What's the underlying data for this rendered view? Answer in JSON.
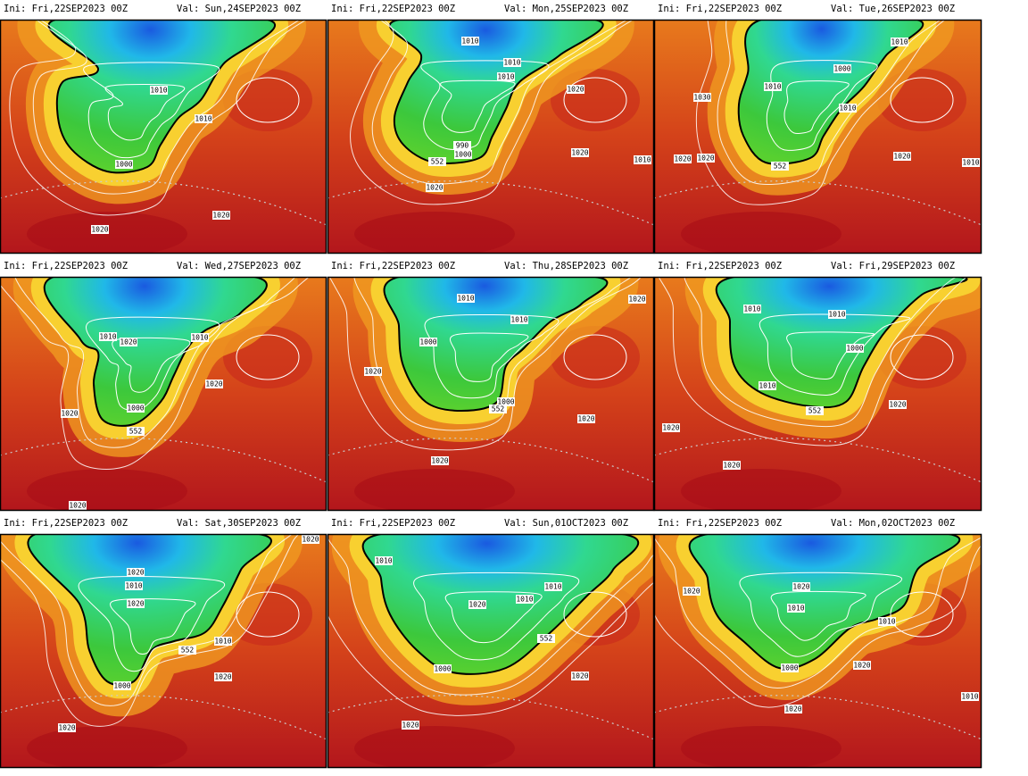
{
  "panels": [
    {
      "init": "Ini: Fri,22SEP2023 00Z",
      "valid": "Val: Sun,24SEP2023 00Z",
      "contour_labels": [
        "1010",
        "1010",
        "1000",
        "1020",
        "1020"
      ]
    },
    {
      "init": "Ini: Fri,22SEP2023 00Z",
      "valid": "Val: Mon,25SEP2023 00Z",
      "contour_labels": [
        "1010",
        "1010",
        "1010",
        "1020",
        "990",
        "1000",
        "552",
        "1020",
        "1020",
        "1010"
      ]
    },
    {
      "init": "Ini: Fri,22SEP2023 00Z",
      "valid": "Val: Tue,26SEP2023 00Z",
      "contour_labels": [
        "1010",
        "1000",
        "1010",
        "1030",
        "1010",
        "1020",
        "1020",
        "552",
        "1020",
        "1010"
      ]
    },
    {
      "init": "Ini: Fri,22SEP2023 00Z",
      "valid": "Val: Wed,27SEP2023 00Z",
      "contour_labels": [
        "1010",
        "1020",
        "1010",
        "1020",
        "1000",
        "1020",
        "552",
        "1020"
      ]
    },
    {
      "init": "Ini: Fri,22SEP2023 00Z",
      "valid": "Val: Thu,28SEP2023 00Z",
      "contour_labels": [
        "1010",
        "1020",
        "1010",
        "1000",
        "1020",
        "1000",
        "552",
        "1020",
        "1020"
      ]
    },
    {
      "init": "Ini: Fri,22SEP2023 00Z",
      "valid": "Val: Fri,29SEP2023 00Z",
      "contour_labels": [
        "1010",
        "1010",
        "1000",
        "1010",
        "552",
        "1020",
        "1020",
        "1020"
      ]
    },
    {
      "init": "Ini: Fri,22SEP2023 00Z",
      "valid": "Val: Sat,30SEP2023 00Z",
      "contour_labels": [
        "1020",
        "1010",
        "1020",
        "1000",
        "1010",
        "552",
        "1020",
        "1020",
        "1020"
      ]
    },
    {
      "init": "Ini: Fri,22SEP2023 00Z",
      "valid": "Val: Sun,01OCT2023 00Z",
      "contour_labels": [
        "1010",
        "1010",
        "1020",
        "1010",
        "552",
        "1000",
        "1020",
        "1020"
      ]
    },
    {
      "init": "Ini: Fri,22SEP2023 00Z",
      "valid": "Val: Mon,02OCT2023 00Z",
      "contour_labels": [
        "1020",
        "1020",
        "1010",
        "1010",
        "1000",
        "1020",
        "1020",
        "1010"
      ]
    }
  ]
}
